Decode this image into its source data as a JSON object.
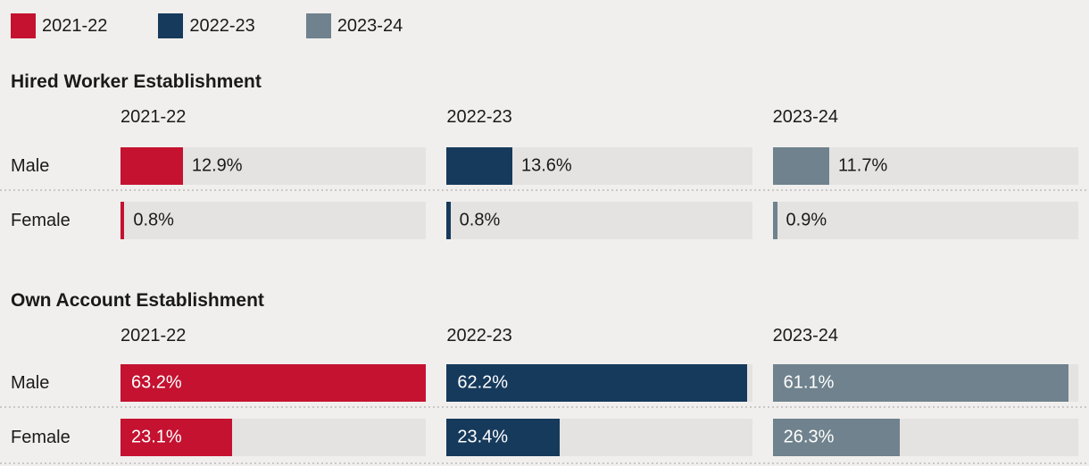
{
  "colors": {
    "background": "#f0efed",
    "track": "#e4e3e1",
    "text": "#1a1a1a",
    "label_inside": "#ffffff",
    "separator": "#c9c8c6",
    "series": [
      "#c41230",
      "#163a5c",
      "#6f828d"
    ]
  },
  "legend": {
    "items": [
      {
        "label": "2021-22",
        "color": "#c41230"
      },
      {
        "label": "2022-23",
        "color": "#163a5c"
      },
      {
        "label": "2023-24",
        "color": "#6f828d"
      }
    ]
  },
  "chart_data": {
    "type": "bar",
    "orientation": "horizontal",
    "value_suffix": "%",
    "scale_max": 63.2,
    "grid": false,
    "legend_position": "top-left",
    "columns": [
      "2021-22",
      "2022-23",
      "2023-24"
    ],
    "sections": [
      {
        "title": "Hired Worker Establishment",
        "rows": [
          {
            "label": "Male",
            "values": [
              12.9,
              13.6,
              11.7
            ]
          },
          {
            "label": "Female",
            "values": [
              0.8,
              0.8,
              0.9
            ]
          }
        ]
      },
      {
        "title": "Own Account Establishment",
        "rows": [
          {
            "label": "Male",
            "values": [
              63.2,
              62.2,
              61.1
            ]
          },
          {
            "label": "Female",
            "values": [
              23.1,
              23.4,
              26.3
            ]
          }
        ]
      }
    ]
  }
}
